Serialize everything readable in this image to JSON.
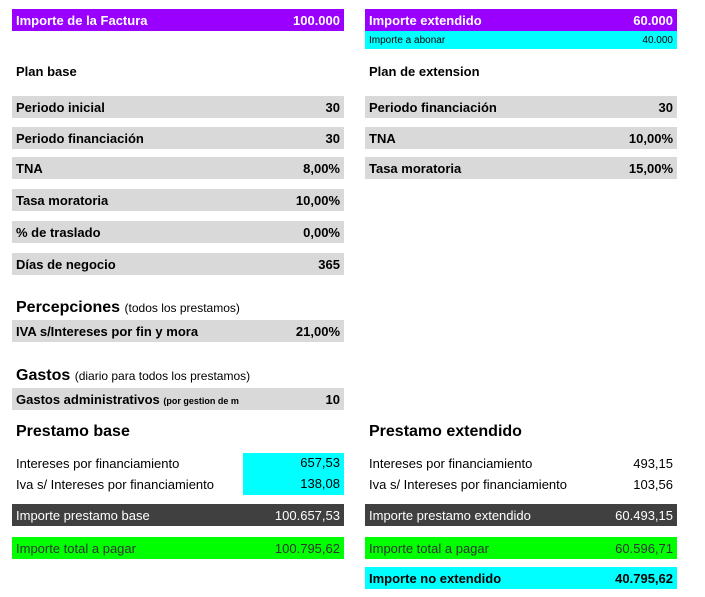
{
  "left": {
    "invoice": {
      "label": "Importe de la Factura",
      "value": "100.000"
    },
    "plan_title": "Plan base",
    "plan_rows": [
      {
        "label": "Periodo inicial",
        "value": "30"
      },
      {
        "label": "Periodo financiación",
        "value": "30"
      },
      {
        "label": "TNA",
        "value": "8,00%"
      },
      {
        "label": "Tasa moratoria",
        "value": "10,00%"
      },
      {
        "label": "% de traslado",
        "value": "0,00%"
      },
      {
        "label": "Días de negocio",
        "value": "365"
      }
    ],
    "percepciones": {
      "title": "Percepciones",
      "note": "(todos los prestamos)",
      "row_label": "IVA s/Intereses por fin y mora",
      "row_value": "21,00%"
    },
    "gastos": {
      "title": "Gastos",
      "note": "(diario para todos los prestamos)",
      "row_label": "Gastos administrativos",
      "row_note": "(por gestion de m",
      "row_value": "10"
    },
    "loan": {
      "title": "Prestamo base",
      "interest_label": "Intereses por financiamiento",
      "interest_value": "657,53",
      "iva_label": "Iva s/ Intereses por financiamiento",
      "iva_value": "138,08",
      "amount_label": "Importe prestamo base",
      "amount_value": "100.657,53",
      "total_label": "Importe total a pagar",
      "total_value": "100.795,62"
    }
  },
  "right": {
    "extended": {
      "label": "Importe extendido",
      "value": "60.000"
    },
    "credit": {
      "label": "Importe a abonar",
      "value": "40.000"
    },
    "plan_title": "Plan de extension",
    "plan_rows": [
      {
        "label": "Periodo financiación",
        "value": "30"
      },
      {
        "label": "TNA",
        "value": "10,00%"
      },
      {
        "label": "Tasa moratoria",
        "value": "15,00%"
      }
    ],
    "loan": {
      "title": "Prestamo extendido",
      "interest_label": "Intereses por financiamiento",
      "interest_value": "493,15",
      "iva_label": "Iva s/ Intereses por financiamiento",
      "iva_value": "103,56",
      "amount_label": "Importe prestamo extendido",
      "amount_value": "60.493,15",
      "total_label": "Importe total a pagar",
      "total_value": "60.596,71",
      "not_extended_label": "Importe no extendido",
      "not_extended_value": "40.795,62"
    }
  },
  "colors": {
    "purple": "#9900ff",
    "cyan": "#00ffff",
    "dark": "#404040",
    "green": "#00ff00",
    "gray": "#d9d9d9"
  }
}
